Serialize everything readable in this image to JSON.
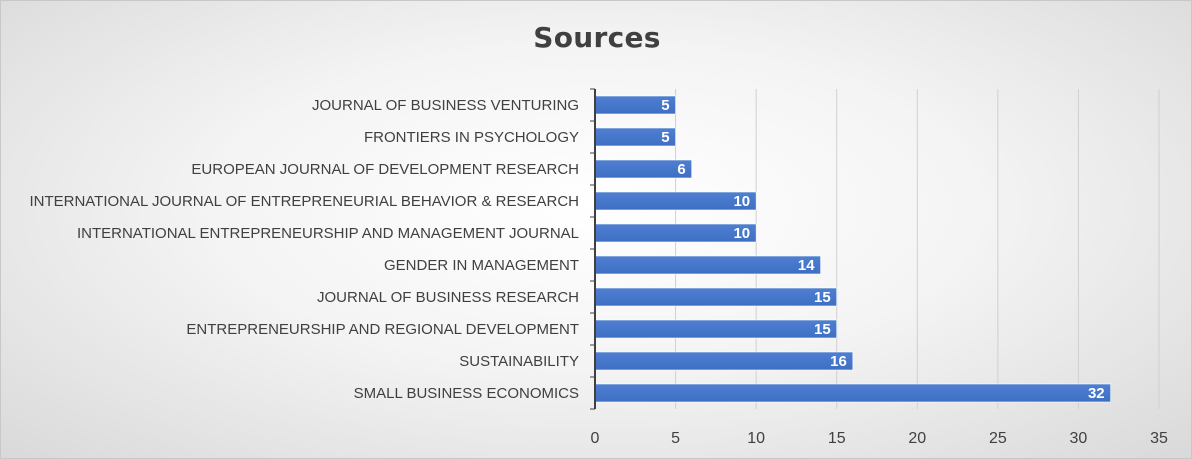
{
  "chart_data": {
    "type": "bar",
    "orientation": "horizontal",
    "title": "Sources",
    "xlabel": "",
    "ylabel": "",
    "categories": [
      "JOURNAL OF BUSINESS VENTURING",
      "FRONTIERS IN PSYCHOLOGY",
      "EUROPEAN JOURNAL OF DEVELOPMENT RESEARCH",
      "INTERNATIONAL JOURNAL OF ENTREPRENEURIAL BEHAVIOR & RESEARCH",
      "INTERNATIONAL ENTREPRENEURSHIP AND MANAGEMENT JOURNAL",
      "GENDER IN MANAGEMENT",
      "JOURNAL OF BUSINESS RESEARCH",
      "ENTREPRENEURSHIP AND REGIONAL DEVELOPMENT",
      "SUSTAINABILITY",
      "SMALL BUSINESS ECONOMICS"
    ],
    "values": [
      5,
      5,
      6,
      10,
      10,
      14,
      15,
      15,
      16,
      32
    ],
    "xlim": [
      0,
      35
    ],
    "xticks": [
      "0",
      "5",
      "10",
      "15",
      "20",
      "25",
      "30",
      "35"
    ],
    "tick_values": [
      0,
      5,
      10,
      15,
      20,
      25,
      30,
      35
    ],
    "grid": "vertical",
    "legend": "none",
    "bar_color": "#4472c4",
    "data_labels": true
  }
}
